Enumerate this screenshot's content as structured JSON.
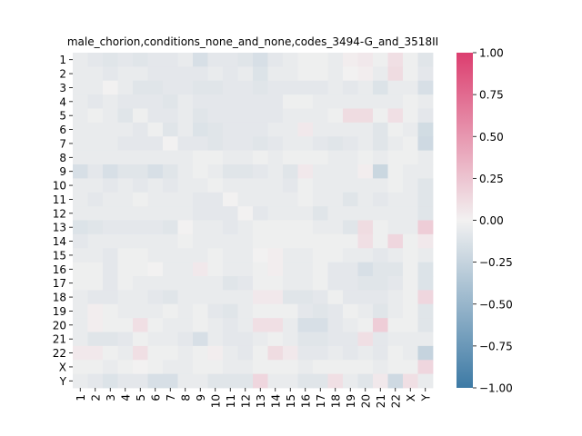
{
  "chart_data": {
    "type": "heatmap",
    "title": "male_chorion,conditions_none_and_none,codes_3494-G_and_3518II",
    "xlabel": "",
    "ylabel": "",
    "labels": [
      "1",
      "2",
      "3",
      "4",
      "5",
      "6",
      "7",
      "8",
      "9",
      "10",
      "11",
      "12",
      "13",
      "14",
      "15",
      "16",
      "17",
      "18",
      "19",
      "20",
      "21",
      "22",
      "X",
      "Y"
    ],
    "zlim": [
      -1.0,
      1.0
    ],
    "colorbar_ticks": [
      "1.00",
      "0.75",
      "0.50",
      "0.25",
      "0.00",
      "−0.25",
      "−0.50",
      "−0.75",
      "−1.00"
    ],
    "colorbar_tick_values": [
      1.0,
      0.75,
      0.5,
      0.25,
      0.0,
      -0.25,
      -0.5,
      -0.75,
      -1.0
    ],
    "colormap": {
      "neg": "#3d7aa5",
      "mid": "#f2f1f1",
      "pos": "#dc3e6f"
    },
    "matrix": [
      [
        -0.05,
        -0.08,
        -0.1,
        -0.08,
        -0.1,
        -0.08,
        -0.08,
        -0.05,
        -0.15,
        -0.08,
        -0.08,
        -0.1,
        -0.15,
        -0.08,
        -0.05,
        -0.02,
        -0.02,
        -0.05,
        0.02,
        0.05,
        -0.02,
        0.1,
        -0.02,
        -0.1
      ],
      [
        -0.05,
        -0.05,
        -0.08,
        -0.05,
        -0.05,
        -0.08,
        -0.08,
        -0.08,
        -0.08,
        -0.05,
        -0.08,
        -0.05,
        -0.12,
        -0.05,
        -0.05,
        -0.02,
        -0.02,
        -0.05,
        0.0,
        0.02,
        -0.05,
        0.12,
        -0.02,
        -0.08
      ],
      [
        -0.05,
        -0.05,
        0.0,
        -0.05,
        -0.1,
        -0.1,
        -0.08,
        -0.08,
        -0.1,
        -0.1,
        -0.08,
        -0.08,
        -0.1,
        -0.08,
        -0.08,
        -0.08,
        -0.08,
        -0.05,
        -0.08,
        -0.05,
        -0.12,
        -0.05,
        -0.05,
        -0.15
      ],
      [
        -0.05,
        -0.08,
        -0.05,
        -0.08,
        -0.08,
        -0.08,
        -0.1,
        -0.05,
        -0.08,
        -0.08,
        -0.08,
        -0.08,
        -0.08,
        -0.08,
        -0.02,
        -0.02,
        -0.05,
        -0.05,
        -0.05,
        -0.05,
        -0.05,
        -0.05,
        -0.02,
        -0.05
      ],
      [
        -0.05,
        -0.02,
        -0.05,
        -0.1,
        -0.02,
        -0.08,
        -0.08,
        -0.05,
        -0.1,
        -0.08,
        -0.08,
        -0.08,
        -0.08,
        -0.08,
        -0.05,
        -0.05,
        -0.05,
        -0.02,
        0.12,
        0.12,
        -0.02,
        0.1,
        -0.02,
        -0.08
      ],
      [
        -0.05,
        -0.05,
        -0.05,
        -0.05,
        -0.08,
        -0.02,
        -0.1,
        -0.05,
        -0.12,
        -0.1,
        -0.08,
        -0.08,
        -0.08,
        -0.05,
        -0.05,
        0.05,
        -0.05,
        -0.05,
        -0.05,
        -0.05,
        -0.1,
        -0.02,
        -0.05,
        -0.18
      ],
      [
        -0.05,
        -0.05,
        -0.05,
        -0.08,
        -0.08,
        -0.08,
        0.0,
        -0.08,
        -0.08,
        -0.1,
        -0.08,
        -0.08,
        -0.1,
        -0.08,
        -0.05,
        -0.05,
        -0.08,
        -0.1,
        -0.08,
        -0.05,
        -0.1,
        -0.05,
        -0.02,
        -0.2
      ],
      [
        -0.05,
        -0.05,
        -0.05,
        -0.05,
        -0.05,
        -0.05,
        -0.05,
        -0.05,
        -0.02,
        -0.02,
        -0.05,
        -0.05,
        -0.02,
        -0.05,
        -0.02,
        -0.02,
        -0.02,
        -0.05,
        -0.05,
        -0.02,
        -0.05,
        -0.02,
        -0.02,
        -0.05
      ],
      [
        -0.15,
        -0.08,
        -0.15,
        -0.1,
        -0.1,
        -0.15,
        -0.1,
        -0.05,
        -0.02,
        -0.05,
        -0.1,
        -0.1,
        -0.08,
        -0.05,
        -0.1,
        0.05,
        -0.05,
        -0.05,
        -0.05,
        0.02,
        -0.22,
        -0.02,
        -0.05,
        -0.05
      ],
      [
        -0.05,
        -0.05,
        -0.08,
        -0.05,
        -0.08,
        -0.05,
        -0.08,
        -0.05,
        -0.05,
        -0.02,
        -0.05,
        -0.05,
        -0.05,
        -0.05,
        -0.08,
        -0.02,
        -0.05,
        -0.05,
        -0.05,
        -0.05,
        -0.05,
        -0.02,
        -0.05,
        -0.1
      ],
      [
        -0.05,
        -0.08,
        -0.05,
        -0.05,
        -0.02,
        -0.05,
        -0.05,
        -0.05,
        -0.08,
        -0.08,
        0.0,
        -0.05,
        -0.05,
        -0.05,
        -0.05,
        -0.02,
        -0.05,
        -0.05,
        -0.1,
        -0.05,
        -0.08,
        -0.05,
        -0.05,
        -0.1
      ],
      [
        -0.05,
        -0.05,
        -0.05,
        -0.05,
        -0.05,
        -0.05,
        -0.05,
        -0.05,
        -0.08,
        -0.08,
        -0.08,
        0.0,
        -0.08,
        -0.05,
        -0.05,
        -0.05,
        -0.1,
        -0.05,
        -0.05,
        -0.05,
        -0.05,
        -0.05,
        -0.05,
        -0.1
      ],
      [
        -0.12,
        -0.1,
        -0.08,
        -0.08,
        -0.08,
        -0.08,
        -0.1,
        0.0,
        -0.05,
        -0.05,
        -0.08,
        -0.05,
        -0.02,
        -0.02,
        -0.02,
        -0.02,
        -0.05,
        -0.05,
        -0.1,
        0.12,
        -0.02,
        -0.05,
        -0.05,
        0.2
      ],
      [
        -0.08,
        -0.05,
        -0.05,
        -0.05,
        -0.05,
        -0.05,
        -0.05,
        -0.02,
        -0.05,
        -0.05,
        -0.05,
        -0.05,
        -0.02,
        -0.02,
        -0.02,
        -0.02,
        -0.02,
        -0.02,
        -0.02,
        0.1,
        -0.02,
        0.15,
        -0.02,
        0.05
      ],
      [
        -0.05,
        -0.05,
        -0.08,
        -0.02,
        -0.02,
        -0.05,
        -0.05,
        -0.05,
        -0.05,
        -0.02,
        -0.05,
        -0.05,
        0.0,
        0.02,
        -0.05,
        -0.05,
        -0.02,
        -0.02,
        -0.05,
        -0.05,
        -0.08,
        -0.05,
        -0.02,
        -0.05
      ],
      [
        -0.02,
        -0.02,
        -0.08,
        -0.02,
        -0.02,
        0.0,
        -0.05,
        -0.05,
        0.05,
        -0.02,
        -0.05,
        -0.05,
        -0.02,
        0.02,
        -0.05,
        -0.05,
        -0.02,
        -0.08,
        -0.08,
        -0.15,
        -0.1,
        -0.1,
        -0.02,
        -0.12
      ],
      [
        -0.02,
        -0.02,
        -0.08,
        -0.02,
        -0.05,
        -0.05,
        -0.05,
        -0.05,
        -0.05,
        -0.05,
        -0.1,
        -0.08,
        -0.02,
        -0.02,
        -0.05,
        -0.05,
        -0.02,
        -0.08,
        -0.08,
        -0.1,
        -0.1,
        -0.08,
        -0.02,
        -0.12
      ],
      [
        -0.05,
        -0.08,
        -0.08,
        -0.05,
        -0.05,
        -0.08,
        -0.1,
        -0.05,
        -0.05,
        -0.05,
        -0.05,
        -0.05,
        0.05,
        0.05,
        -0.1,
        -0.1,
        -0.08,
        -0.02,
        -0.08,
        -0.08,
        -0.08,
        -0.05,
        -0.02,
        0.15
      ],
      [
        -0.05,
        0.02,
        -0.02,
        -0.05,
        -0.05,
        -0.05,
        -0.02,
        -0.05,
        -0.02,
        -0.08,
        -0.1,
        -0.05,
        -0.02,
        -0.02,
        -0.02,
        -0.08,
        -0.1,
        -0.08,
        -0.02,
        -0.05,
        -0.1,
        -0.05,
        -0.02,
        -0.1
      ],
      [
        -0.05,
        0.02,
        -0.02,
        -0.02,
        0.1,
        -0.02,
        -0.05,
        -0.05,
        -0.02,
        -0.05,
        -0.08,
        -0.05,
        0.1,
        0.1,
        -0.05,
        -0.15,
        -0.15,
        -0.08,
        -0.05,
        -0.02,
        0.2,
        -0.02,
        -0.02,
        -0.1
      ],
      [
        -0.05,
        -0.1,
        -0.1,
        -0.08,
        -0.02,
        -0.05,
        -0.05,
        -0.08,
        -0.15,
        -0.05,
        -0.08,
        -0.08,
        -0.05,
        -0.02,
        -0.05,
        -0.1,
        -0.1,
        -0.08,
        -0.08,
        0.1,
        -0.08,
        -0.05,
        -0.05,
        -0.05
      ],
      [
        0.05,
        0.05,
        -0.02,
        -0.05,
        0.1,
        -0.02,
        -0.02,
        -0.05,
        -0.02,
        0.02,
        -0.05,
        -0.08,
        -0.02,
        0.12,
        0.05,
        -0.08,
        -0.08,
        -0.05,
        -0.08,
        -0.05,
        -0.08,
        -0.02,
        -0.05,
        -0.25
      ],
      [
        -0.02,
        -0.02,
        -0.05,
        -0.02,
        0.0,
        -0.02,
        -0.05,
        -0.05,
        -0.02,
        -0.02,
        -0.05,
        -0.05,
        -0.02,
        -0.02,
        -0.02,
        -0.05,
        -0.02,
        -0.02,
        -0.02,
        -0.02,
        -0.05,
        -0.02,
        -0.02,
        0.15
      ],
      [
        -0.05,
        -0.08,
        -0.12,
        -0.08,
        -0.08,
        -0.15,
        -0.15,
        -0.05,
        -0.05,
        -0.1,
        -0.1,
        -0.1,
        0.15,
        -0.05,
        -0.05,
        -0.1,
        -0.1,
        0.1,
        -0.05,
        -0.1,
        0.05,
        -0.2,
        0.1,
        -0.05
      ]
    ]
  }
}
